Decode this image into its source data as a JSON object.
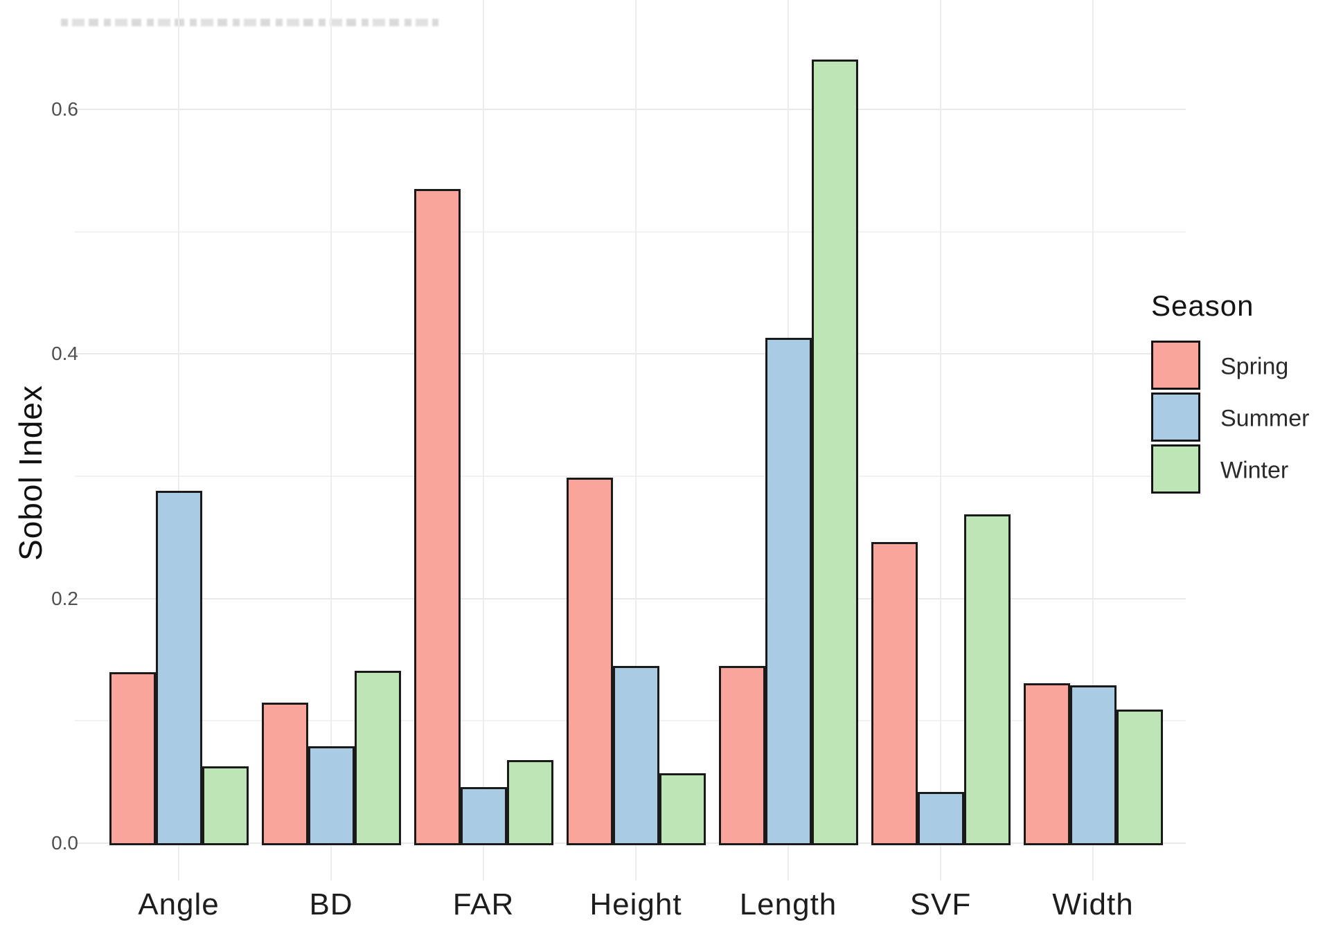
{
  "artifacts": {
    "top_strip": "illegible-cropped-text"
  },
  "chart_data": {
    "type": "bar",
    "title": "",
    "xlabel": "",
    "ylabel": "Sobol Index",
    "categories": [
      "Angle",
      "BD",
      "FAR",
      "Height",
      "Length",
      "SVF",
      "Width"
    ],
    "series": [
      {
        "name": "Spring",
        "color": "#faa59c",
        "values": [
          0.14,
          0.115,
          0.535,
          0.299,
          0.145,
          0.246,
          0.131
        ]
      },
      {
        "name": "Summer",
        "color": "#a9cbe3",
        "values": [
          0.288,
          0.079,
          0.046,
          0.145,
          0.413,
          0.042,
          0.129
        ]
      },
      {
        "name": "Winter",
        "color": "#bde5b5",
        "values": [
          0.063,
          0.141,
          0.068,
          0.057,
          0.641,
          0.269,
          0.109
        ]
      }
    ],
    "ylim": [
      0,
      0.69
    ],
    "yticks": [
      {
        "value": 0.0,
        "label": "0.0"
      },
      {
        "value": 0.2,
        "label": "0.2"
      },
      {
        "value": 0.4,
        "label": "0.4"
      },
      {
        "value": 0.6,
        "label": "0.6"
      }
    ],
    "ygrid_major": [
      0.0,
      0.2,
      0.4,
      0.6
    ],
    "ygrid_minor": [
      0.1,
      0.3,
      0.5
    ],
    "grid": true,
    "bar_outline": "#1a1a1a",
    "legend": {
      "title": "Season",
      "position": "right"
    }
  }
}
